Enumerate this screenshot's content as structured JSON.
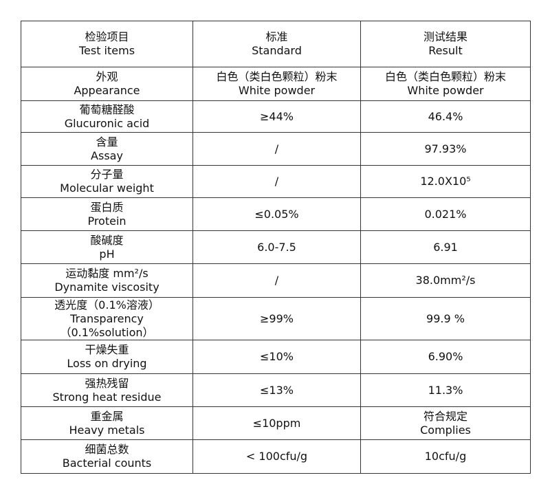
{
  "header": {
    "item": [
      "检验项目",
      "Test items"
    ],
    "standard": [
      "标准",
      "Standard"
    ],
    "result": [
      "测试结果",
      "Result"
    ]
  },
  "rows": [
    {
      "item": [
        "外观",
        "Appearance"
      ],
      "standard": [
        "白色（类白色颗粒）粉末",
        "White powder"
      ],
      "result": [
        "白色（类白色颗粒）粉末",
        "White powder"
      ]
    },
    {
      "item": [
        "葡萄糖醛酸",
        "Glucuronic acid"
      ],
      "standard": [
        "≥44%"
      ],
      "result": [
        "46.4%"
      ]
    },
    {
      "item": [
        "含量",
        "Assay"
      ],
      "standard": [
        "/"
      ],
      "result": [
        "97.93%"
      ]
    },
    {
      "item": [
        "分子量",
        "Molecular weight"
      ],
      "standard": [
        "/"
      ],
      "result": [
        "12.0X10⁵"
      ]
    },
    {
      "item": [
        "蛋白质",
        "Protein"
      ],
      "standard": [
        "≤0.05%"
      ],
      "result": [
        "0.021%"
      ]
    },
    {
      "item": [
        "酸碱度",
        "pH"
      ],
      "standard": [
        "6.0-7.5"
      ],
      "result": [
        "6.91"
      ]
    },
    {
      "item": [
        "运动黏度 mm²/s",
        "Dynamite viscosity"
      ],
      "standard": [
        "/"
      ],
      "result": [
        "38.0mm²/s"
      ]
    },
    {
      "item": [
        "透光度（0.1%溶液）",
        "Transparency",
        "（0.1%solution）"
      ],
      "standard": [
        "≥99%"
      ],
      "result": [
        "99.9 %"
      ]
    },
    {
      "item": [
        "干燥失重",
        "Loss on drying"
      ],
      "standard": [
        "≤10%"
      ],
      "result": [
        "6.90%"
      ]
    },
    {
      "item": [
        "强热残留",
        "Strong heat residue"
      ],
      "standard": [
        "≤13%"
      ],
      "result": [
        "11.3%"
      ]
    },
    {
      "item": [
        "重金属",
        "Heavy metals"
      ],
      "standard": [
        "≤10ppm"
      ],
      "result": [
        "符合规定",
        "Complies"
      ]
    },
    {
      "item": [
        "细菌总数",
        "Bacterial counts"
      ],
      "standard": [
        "< 100cfu/g"
      ],
      "result": [
        "10cfu/g"
      ]
    }
  ]
}
